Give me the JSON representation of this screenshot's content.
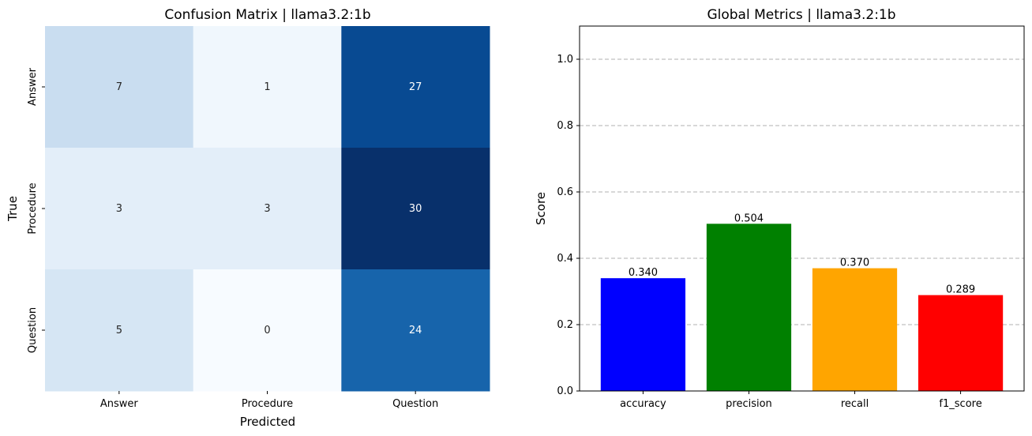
{
  "chart_data": [
    {
      "type": "heatmap",
      "title": "Confusion Matrix | llama3.2:1b",
      "xlabel": "Predicted",
      "ylabel": "True",
      "x_categories": [
        "Answer",
        "Procedure",
        "Question"
      ],
      "y_categories": [
        "Answer",
        "Procedure",
        "Question"
      ],
      "values": [
        [
          7,
          1,
          27
        ],
        [
          3,
          3,
          30
        ],
        [
          5,
          0,
          24
        ]
      ],
      "colormap": "Blues",
      "vmin": 0,
      "vmax": 30,
      "colorbar": false
    },
    {
      "type": "bar",
      "title": "Global Metrics | llama3.2:1b",
      "xlabel": "",
      "ylabel": "Score",
      "categories": [
        "accuracy",
        "precision",
        "recall",
        "f1_score"
      ],
      "values": [
        0.34,
        0.504,
        0.37,
        0.289
      ],
      "value_labels": [
        "0.340",
        "0.504",
        "0.370",
        "0.289"
      ],
      "colors": [
        "#0000ff",
        "#008000",
        "#ffa500",
        "#ff0000"
      ],
      "ylim": [
        0,
        1.1
      ],
      "yticks": [
        0.0,
        0.2,
        0.4,
        0.6,
        0.8,
        1.0
      ],
      "ytick_labels": [
        "0.0",
        "0.2",
        "0.4",
        "0.6",
        "0.8",
        "1.0"
      ],
      "grid": "y-dashed"
    }
  ]
}
